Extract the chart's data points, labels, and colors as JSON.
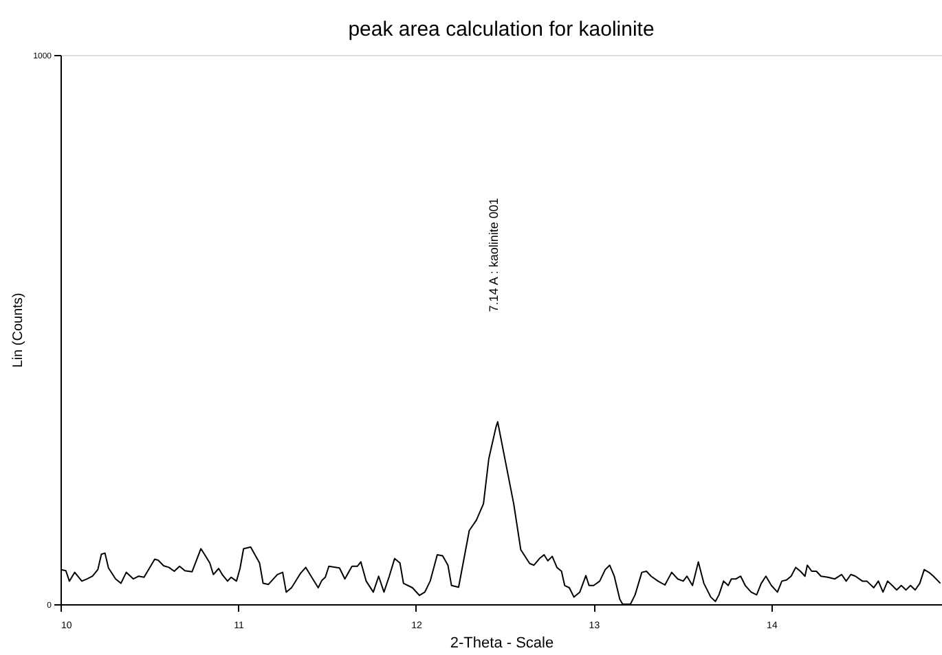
{
  "chart_data": {
    "type": "line",
    "title": "peak area calculation for kaolinite",
    "xlabel": "2-Theta - Scale",
    "ylabel": "Lin (Counts)",
    "x": [
      10.0,
      10.03,
      10.05,
      10.08,
      10.12,
      10.15,
      10.18,
      10.21,
      10.23,
      10.25,
      10.27,
      10.31,
      10.34,
      10.37,
      10.41,
      10.44,
      10.47,
      10.49,
      10.53,
      10.55,
      10.58,
      10.61,
      10.64,
      10.67,
      10.7,
      10.74,
      10.79,
      10.81,
      10.84,
      10.86,
      10.89,
      10.91,
      10.94,
      10.96,
      10.99,
      11.01,
      11.03,
      11.07,
      11.12,
      11.14,
      11.17,
      11.22,
      11.25,
      11.27,
      11.3,
      11.35,
      11.38,
      11.41,
      11.45,
      11.47,
      11.49,
      11.51,
      11.57,
      11.6,
      11.64,
      11.67,
      11.69,
      11.72,
      11.76,
      11.79,
      11.82,
      11.85,
      11.88,
      11.91,
      11.93,
      11.98,
      12.02,
      12.05,
      12.08,
      12.12,
      12.15,
      12.18,
      12.2,
      12.24,
      12.3,
      12.34,
      12.38,
      12.41,
      12.45,
      12.46,
      12.49,
      12.55,
      12.59,
      12.64,
      12.664,
      12.695,
      12.721,
      12.742,
      12.767,
      12.793,
      12.819,
      12.837,
      12.863,
      12.889,
      12.922,
      12.956,
      12.974,
      13.0,
      13.034,
      13.065,
      13.09,
      13.116,
      13.147,
      13.163,
      13.207,
      13.233,
      13.271,
      13.297,
      13.323,
      13.362,
      13.401,
      13.439,
      13.473,
      13.504,
      13.525,
      13.556,
      13.589,
      13.62,
      13.659,
      13.685,
      13.705,
      13.731,
      13.757,
      13.775,
      13.801,
      13.827,
      13.853,
      13.886,
      13.917,
      13.943,
      13.969,
      14.0,
      14.034,
      14.059,
      14.085,
      14.111,
      14.137,
      14.163,
      14.189,
      14.202,
      14.227,
      14.253,
      14.279,
      14.318,
      14.357,
      14.395,
      14.421,
      14.447,
      14.473,
      14.512,
      14.537,
      14.576,
      14.602,
      14.628,
      14.654,
      14.68,
      14.705,
      14.731,
      14.757,
      14.783,
      14.809,
      14.835,
      14.86,
      14.886,
      14.912,
      14.951
    ],
    "series": [
      {
        "color": "#000000",
        "values": [
          63,
          61,
          42,
          58,
          42,
          46,
          51,
          63,
          91,
          93,
          66,
          46,
          38,
          58,
          46,
          51,
          49,
          60,
          82,
          80,
          70,
          67,
          60,
          69,
          61,
          59,
          101,
          91,
          75,
          54,
          65,
          54,
          42,
          49,
          42,
          65,
          101,
          104,
          75,
          38,
          36,
          54,
          58,
          22,
          30,
          56,
          67,
          51,
          30,
          43,
          49,
          69,
          66,
          46,
          69,
          69,
          77,
          42,
          22,
          51,
          22,
          51,
          83,
          75,
          38,
          30,
          16,
          22,
          42,
          90,
          88,
          71,
          34,
          31,
          134,
          153,
          183,
          265,
          322,
          332,
          282,
          183,
          99,
          74,
          71,
          83,
          90,
          79,
          87,
          67,
          60,
          34,
          30,
          13,
          22,
          52,
          34,
          34,
          42,
          63,
          71,
          51,
          9,
          0,
          0,
          17,
          58,
          60,
          51,
          42,
          35,
          58,
          46,
          42,
          51,
          34,
          77,
          38,
          13,
          5,
          17,
          42,
          34,
          46,
          46,
          51,
          34,
          22,
          17,
          38,
          51,
          34,
          22,
          42,
          44,
          51,
          67,
          60,
          51,
          71,
          60,
          60,
          51,
          49,
          46,
          54,
          42,
          54,
          51,
          42,
          42,
          30,
          42,
          22,
          42,
          34,
          26,
          34,
          26,
          34,
          26,
          38,
          63,
          58,
          51,
          38
        ]
      }
    ],
    "xlim": [
      10,
      14.96
    ],
    "ylim": [
      0,
      1000
    ],
    "xticks": [
      10,
      11,
      12,
      13,
      14
    ],
    "yticks": [
      0,
      1000
    ],
    "annotations": [
      "7.14 A : kaolinite 001"
    ],
    "grid": false,
    "marker": "none",
    "line_style": "solid"
  }
}
